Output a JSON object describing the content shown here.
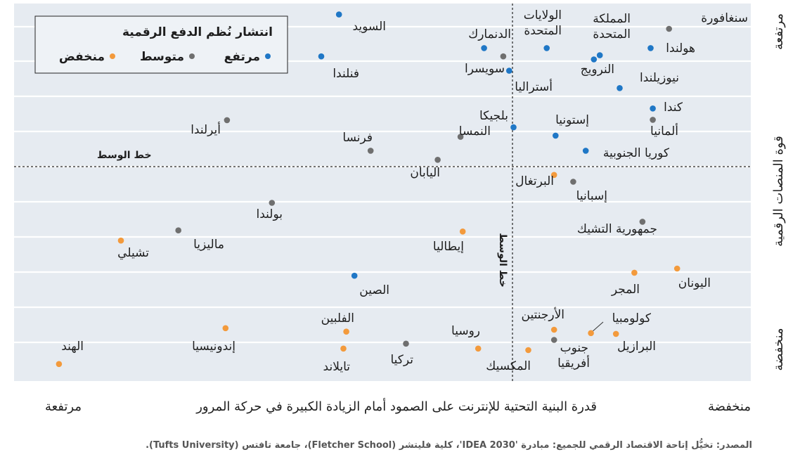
{
  "chart_data": {
    "type": "scatter",
    "xlabel": "قدرة البنية التحتية للإنترنت على الصمود أمام الزيادة الكبيرة في حركة المرور",
    "x_low_label": "منخفضة",
    "x_high_label": "مرتفعة",
    "ylabel": "قوة المنصات الرقمية",
    "y_low_label": "منخفضة",
    "y_high_label": "مرتفعة",
    "x_midline_label": "خط الوسط",
    "y_midline_label": "خط الوسط",
    "legend": {
      "title": "انتشار نُظم الدفع الرقمية",
      "items": [
        {
          "key": "high",
          "label": "مرتفع",
          "color": "#1f77c6"
        },
        {
          "key": "medium",
          "label": "متوسط",
          "color": "#6f6f6f"
        },
        {
          "key": "low",
          "label": "منخفض",
          "color": "#f39a3c"
        }
      ]
    },
    "xlim": [
      0,
      100
    ],
    "ylim": [
      0,
      100
    ],
    "points": [
      {
        "name": "السويد",
        "group": "high",
        "x": 55.9,
        "y": 97.1
      },
      {
        "name": "الدنمارك",
        "group": "high",
        "x": 36.2,
        "y": 88.2
      },
      {
        "name": "الولايات المتحدة",
        "group": "high",
        "x": 27.7,
        "y": 88.2
      },
      {
        "name": "المملكة المتحدة",
        "group": "high",
        "x": 20.5,
        "y": 86.3
      },
      {
        "name": "سنغافورة",
        "group": "medium",
        "x": 11.1,
        "y": 93.3
      },
      {
        "name": "هولندا",
        "group": "high",
        "x": 13.6,
        "y": 88.2
      },
      {
        "name": "فنلندا",
        "group": "high",
        "x": 58.3,
        "y": 86.0
      },
      {
        "name": "سويسرا",
        "group": "medium",
        "x": 33.6,
        "y": 86.0
      },
      {
        "name": "النرويج",
        "group": "high",
        "x": 21.3,
        "y": 85.2
      },
      {
        "name": "أستراليا",
        "group": "high",
        "x": 32.8,
        "y": 82.2
      },
      {
        "name": "نيوزيلندا",
        "group": "high",
        "x": 17.8,
        "y": 77.6
      },
      {
        "name": "كندا",
        "group": "high",
        "x": 13.3,
        "y": 72.2
      },
      {
        "name": "ألمانيا",
        "group": "medium",
        "x": 13.3,
        "y": 69.2
      },
      {
        "name": "أيرلندا",
        "group": "medium",
        "x": 71.1,
        "y": 69.1
      },
      {
        "name": "بلجيكا",
        "group": "high",
        "x": 32.2,
        "y": 67.2
      },
      {
        "name": "إستونيا",
        "group": "high",
        "x": 26.5,
        "y": 65.0
      },
      {
        "name": "فرنسا",
        "group": "medium",
        "x": 51.6,
        "y": 61.0
      },
      {
        "name": "النمسا",
        "group": "medium",
        "x": 39.4,
        "y": 64.7
      },
      {
        "name": "كوريا الجنوبية",
        "group": "high",
        "x": 22.4,
        "y": 61.0
      },
      {
        "name": "اليابان",
        "group": "medium",
        "x": 42.5,
        "y": 58.6
      },
      {
        "name": "البرتغال",
        "group": "low",
        "x": 26.7,
        "y": 54.6
      },
      {
        "name": "إسبانيا",
        "group": "medium",
        "x": 24.1,
        "y": 52.8
      },
      {
        "name": "بولندا",
        "group": "medium",
        "x": 65.0,
        "y": 47.2
      },
      {
        "name": "جمهورية التشيك",
        "group": "medium",
        "x": 14.7,
        "y": 42.2
      },
      {
        "name": "ماليزيا",
        "group": "medium",
        "x": 77.7,
        "y": 39.9
      },
      {
        "name": "تشيلي",
        "group": "low",
        "x": 85.5,
        "y": 37.2
      },
      {
        "name": "إيطاليا",
        "group": "low",
        "x": 39.1,
        "y": 39.6
      },
      {
        "name": "الصين",
        "group": "high",
        "x": 53.8,
        "y": 27.9
      },
      {
        "name": "اليونان",
        "group": "low",
        "x": 10.0,
        "y": 29.8
      },
      {
        "name": "المجر",
        "group": "low",
        "x": 15.8,
        "y": 28.7
      },
      {
        "name": "الأرجنتين",
        "group": "low",
        "x": 26.7,
        "y": 13.6
      },
      {
        "name": "جنوب أفريقيا",
        "group": "medium",
        "x": 26.7,
        "y": 10.9
      },
      {
        "name": "كولومبيا",
        "group": "low",
        "x": 21.7,
        "y": 12.7
      },
      {
        "name": "البرازيل",
        "group": "low",
        "x": 18.3,
        "y": 12.5
      },
      {
        "name": "روسيا",
        "group": "low",
        "x": 37.0,
        "y": 8.6
      },
      {
        "name": "المكسيك",
        "group": "low",
        "x": 30.2,
        "y": 8.2
      },
      {
        "name": "الفلبين",
        "group": "low",
        "x": 54.9,
        "y": 13.1
      },
      {
        "name": "تايلاند",
        "group": "low",
        "x": 55.3,
        "y": 8.6
      },
      {
        "name": "تركيا",
        "group": "medium",
        "x": 46.8,
        "y": 9.9
      },
      {
        "name": "إندونيسيا",
        "group": "low",
        "x": 71.3,
        "y": 14.0
      },
      {
        "name": "الهند",
        "group": "low",
        "x": 93.9,
        "y": 4.5
      }
    ]
  },
  "source": "المصدر: تخيُّل إتاحة الاقتصاد الرقمي للجميع: مبادرة 'IDEA 2030'، كلية فليتشر (Fletcher School)، جامعة تافتس (Tufts University)."
}
